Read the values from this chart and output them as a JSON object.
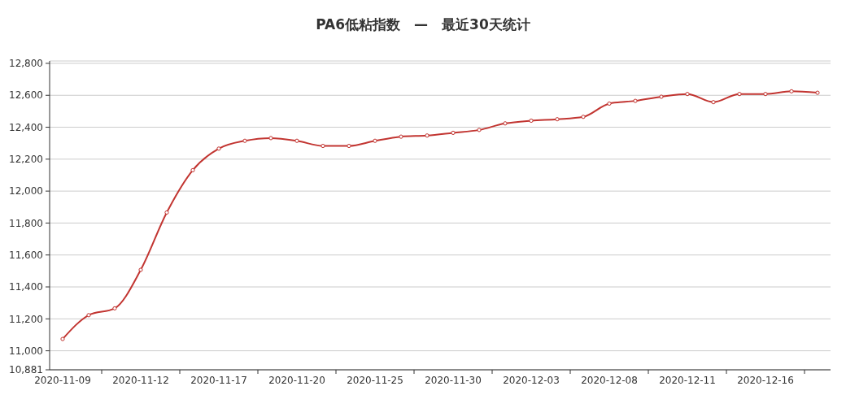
{
  "chart_data": {
    "type": "line",
    "title": "PA6低粘指数　—　最近30天统计",
    "categories": [
      "2020-11-09",
      null,
      null,
      "2020-11-12",
      null,
      null,
      "2020-11-17",
      null,
      null,
      "2020-11-20",
      null,
      null,
      "2020-11-25",
      null,
      null,
      "2020-11-30",
      null,
      null,
      "2020-12-03",
      null,
      null,
      "2020-12-08",
      null,
      null,
      "2020-12-11",
      null,
      null,
      "2020-12-16",
      null,
      null
    ],
    "series": [
      {
        "color": "#c23531",
        "values": [
          11074,
          11223,
          11266,
          11507,
          11866,
          12131,
          12266,
          12315,
          12332,
          12315,
          12283,
          12283,
          12315,
          12341,
          12348,
          12365,
          12383,
          12424,
          12441,
          12450,
          12465,
          12548,
          12565,
          12591,
          12608,
          12557,
          12608,
          12608,
          12625,
          12616
        ]
      }
    ],
    "ylim": [
      10881,
      12815
    ],
    "yticks": [
      {
        "value": 10881,
        "label": "10,881"
      },
      {
        "value": 11000,
        "label": "11,000"
      },
      {
        "value": 11200,
        "label": "11,200"
      },
      {
        "value": 11400,
        "label": "11,400"
      },
      {
        "value": 11600,
        "label": "11,600"
      },
      {
        "value": 11800,
        "label": "11,800"
      },
      {
        "value": 12000,
        "label": "12,000"
      },
      {
        "value": 12200,
        "label": "12,200"
      },
      {
        "value": 12400,
        "label": "12,400"
      },
      {
        "value": 12600,
        "label": "12,600"
      },
      {
        "value": 12800,
        "label": "12,800"
      }
    ],
    "grid": "y",
    "marker": "circle",
    "line_style": "solid"
  }
}
